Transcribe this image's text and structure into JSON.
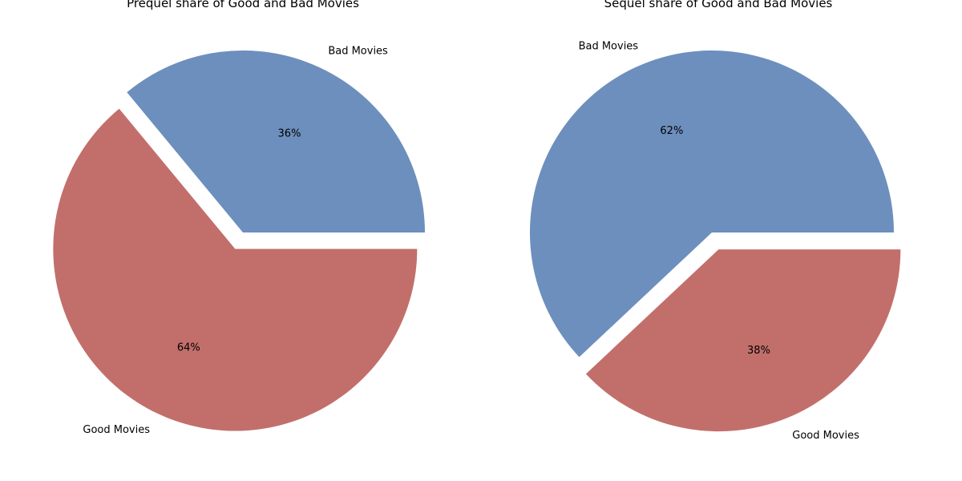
{
  "chart_data": [
    {
      "type": "pie",
      "title": "Prequel share of Good and Bad Movies",
      "slices": [
        {
          "label": "Bad Movies",
          "value": 36,
          "pct_label": "36%",
          "color": "#6d8fbd",
          "exploded": false
        },
        {
          "label": "Good Movies",
          "value": 64,
          "pct_label": "64%",
          "color": "#c26f6b",
          "exploded": true
        }
      ],
      "start_angle": 0,
      "direction": "counterclockwise"
    },
    {
      "type": "pie",
      "title": "Sequel share of Good and Bad Movies",
      "slices": [
        {
          "label": "Bad Movies",
          "value": 62,
          "pct_label": "62%",
          "color": "#6d8fbd",
          "exploded": false
        },
        {
          "label": "Good Movies",
          "value": 38,
          "pct_label": "38%",
          "color": "#c26f6b",
          "exploded": true
        }
      ],
      "start_angle": 0,
      "direction": "counterclockwise"
    }
  ]
}
